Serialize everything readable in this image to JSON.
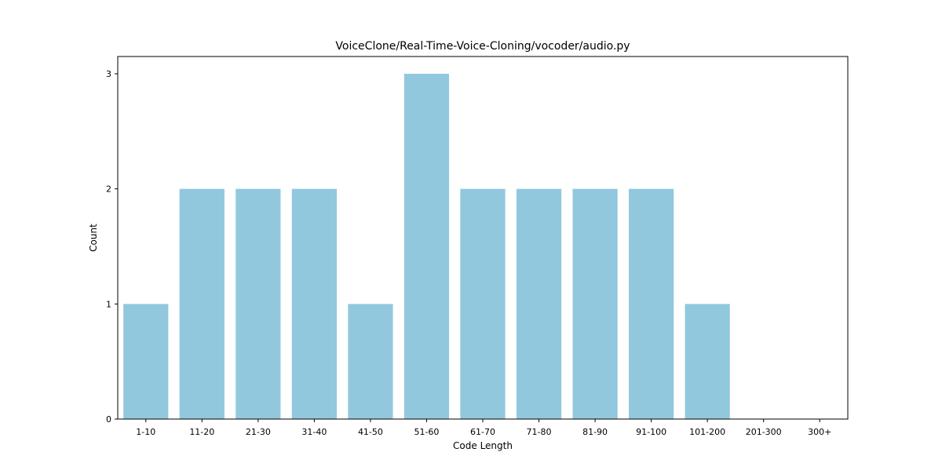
{
  "chart_data": {
    "type": "bar",
    "title": "VoiceClone/Real-Time-Voice-Cloning/vocoder/audio.py",
    "xlabel": "Code Length",
    "ylabel": "Count",
    "categories": [
      "1-10",
      "11-20",
      "21-30",
      "31-40",
      "41-50",
      "51-60",
      "61-70",
      "71-80",
      "81-90",
      "91-100",
      "101-200",
      "201-300",
      "300+"
    ],
    "values": [
      1,
      2,
      2,
      2,
      1,
      3,
      2,
      2,
      2,
      2,
      1,
      0,
      0
    ],
    "ylim": [
      0,
      3.15
    ],
    "yticks": [
      0,
      1,
      2,
      3
    ],
    "bar_color": "#92c8de",
    "grid": false,
    "legend": false
  }
}
